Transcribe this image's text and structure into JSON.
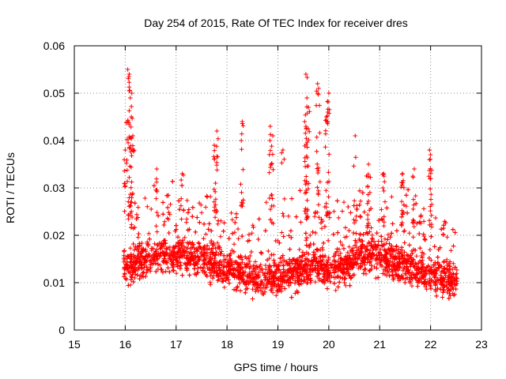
{
  "chart_data": {
    "type": "scatter",
    "title": "Day 254 of 2015, Rate Of TEC Index for receiver dres",
    "xlabel": "GPS time / hours",
    "ylabel": "ROTI / TECUs",
    "xlim": [
      15,
      23
    ],
    "ylim": [
      0,
      0.06
    ],
    "x_ticks": [
      "15",
      "16",
      "17",
      "18",
      "19",
      "20",
      "21",
      "22",
      "23"
    ],
    "y_ticks": [
      "0",
      "0.01",
      "0.02",
      "0.03",
      "0.04",
      "0.05",
      "0.06"
    ],
    "grid": true,
    "marker": "+",
    "color": "#ff0000",
    "series": [
      {
        "name": "ROTI",
        "note": "Dense point cloud between ~16.0 h and ~22.5 h; values mostly 0.005–0.025 TECU, peaks listed in highlights",
        "x_range": [
          15.97,
          22.52
        ],
        "typical_range": [
          0.005,
          0.025
        ],
        "highlights": [
          {
            "x": 16.05,
            "y": 0.055
          },
          {
            "x": 16.08,
            "y": 0.054
          },
          {
            "x": 16.1,
            "y": 0.049
          },
          {
            "x": 16.13,
            "y": 0.05
          },
          {
            "x": 16.05,
            "y": 0.044
          },
          {
            "x": 16.0,
            "y": 0.038
          },
          {
            "x": 16.12,
            "y": 0.045
          },
          {
            "x": 16.15,
            "y": 0.041
          },
          {
            "x": 16.62,
            "y": 0.034
          },
          {
            "x": 17.12,
            "y": 0.033
          },
          {
            "x": 17.8,
            "y": 0.042
          },
          {
            "x": 17.75,
            "y": 0.039
          },
          {
            "x": 18.3,
            "y": 0.044
          },
          {
            "x": 18.28,
            "y": 0.04
          },
          {
            "x": 18.85,
            "y": 0.043
          },
          {
            "x": 18.9,
            "y": 0.041
          },
          {
            "x": 19.1,
            "y": 0.038
          },
          {
            "x": 19.55,
            "y": 0.054
          },
          {
            "x": 19.57,
            "y": 0.049
          },
          {
            "x": 19.6,
            "y": 0.047
          },
          {
            "x": 19.55,
            "y": 0.043
          },
          {
            "x": 19.78,
            "y": 0.052
          },
          {
            "x": 19.8,
            "y": 0.051
          },
          {
            "x": 19.98,
            "y": 0.046
          },
          {
            "x": 20.0,
            "y": 0.05
          },
          {
            "x": 19.95,
            "y": 0.045
          },
          {
            "x": 20.52,
            "y": 0.041
          },
          {
            "x": 20.78,
            "y": 0.035
          },
          {
            "x": 21.08,
            "y": 0.033
          },
          {
            "x": 21.45,
            "y": 0.033
          },
          {
            "x": 21.68,
            "y": 0.034
          },
          {
            "x": 21.98,
            "y": 0.038
          },
          {
            "x": 22.0,
            "y": 0.037
          }
        ]
      }
    ]
  }
}
